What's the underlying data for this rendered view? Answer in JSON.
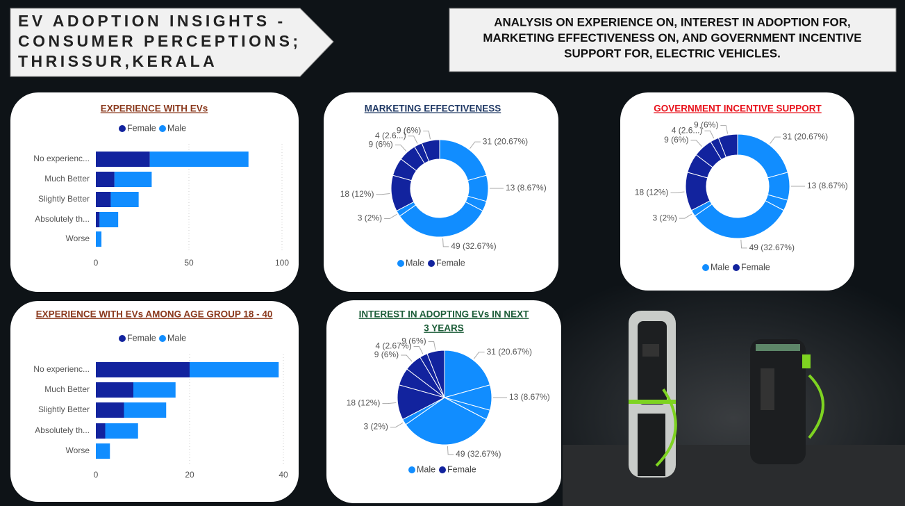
{
  "header": {
    "title_lines": [
      "EV ADOPTION INSIGHTS -",
      "CONSUMER PERCEPTIONS;",
      "THRISSUR,KERALA"
    ],
    "subtitle_lines": [
      "ANALYSIS ON EXPERIENCE ON, INTEREST IN ADOPTION FOR,",
      "MARKETING EFFECTIVENESS ON,  AND GOVERNMENT INCENTIVE",
      "SUPPORT FOR, ELECTRIC VEHICLES."
    ]
  },
  "chart_data": [
    {
      "type": "bar",
      "orientation": "horizontal",
      "stacked": true,
      "title": [
        "EXPERIENCE WITH EVs"
      ],
      "title_color": "#8b3a1e",
      "categories": [
        "No experienc...",
        "Much Better",
        "Slightly Better",
        "Absolutely th...",
        "Worse"
      ],
      "series": [
        {
          "name": "Female",
          "color": "#12239e",
          "values": [
            29,
            10,
            8,
            2,
            0
          ]
        },
        {
          "name": "Male",
          "color": "#118dff",
          "values": [
            53,
            20,
            15,
            10,
            3
          ]
        }
      ],
      "xlim": [
        0,
        100
      ],
      "xticks": [
        0,
        50,
        100
      ],
      "grid": true
    },
    {
      "type": "donut",
      "title": [
        "MARKETING EFFECTIVENESS"
      ],
      "title_color": "#1f3864",
      "series": [
        {
          "name": "Male",
          "color": "#118dff",
          "values": [
            31,
            13,
            5,
            49,
            3
          ],
          "value_labels": [
            "31 (20.67%)",
            "13 (8.67%)",
            null,
            "49 (32.67%)",
            "3 (2%)"
          ]
        },
        {
          "name": "Female",
          "color": "#12239e",
          "values": [
            18,
            9,
            9,
            4,
            9
          ],
          "value_labels": [
            "18 (12%)",
            null,
            "9 (6%)",
            "4 (2.6...)",
            "9 (6%)"
          ]
        }
      ]
    },
    {
      "type": "donut",
      "title": [
        "GOVERNMENT INCENTIVE SUPPORT"
      ],
      "title_color": "#e8101a",
      "series": [
        {
          "name": "Male",
          "color": "#118dff",
          "values": [
            31,
            13,
            5,
            49,
            3
          ],
          "value_labels": [
            "31 (20.67%)",
            "13 (8.67%)",
            null,
            "49 (32.67%)",
            "3 (2%)"
          ]
        },
        {
          "name": "Female",
          "color": "#12239e",
          "values": [
            18,
            9,
            9,
            4,
            9
          ],
          "value_labels": [
            "18 (12%)",
            null,
            "9 (6%)",
            "4 (2.6...)",
            "9 (6%)"
          ]
        }
      ]
    },
    {
      "type": "bar",
      "orientation": "horizontal",
      "stacked": true,
      "title": [
        "EXPERIENCE WITH EVs AMONG AGE GROUP 18 - 40"
      ],
      "title_color": "#8b3a1e",
      "categories": [
        "No experienc...",
        "Much Better",
        "Slightly Better",
        "Absolutely th...",
        "Worse"
      ],
      "series": [
        {
          "name": "Female",
          "color": "#12239e",
          "values": [
            20,
            8,
            6,
            2,
            0
          ]
        },
        {
          "name": "Male",
          "color": "#118dff",
          "values": [
            19,
            9,
            9,
            7,
            3
          ]
        }
      ],
      "xlim": [
        0,
        40
      ],
      "xticks": [
        0,
        20,
        40
      ],
      "grid": true
    },
    {
      "type": "pie",
      "title": [
        "INTEREST IN ADOPTING EVs IN NEXT",
        "3 YEARS"
      ],
      "title_color": "#1e5e3a",
      "series": [
        {
          "name": "Male",
          "color": "#118dff",
          "values": [
            31,
            13,
            5,
            49,
            3
          ],
          "value_labels": [
            "31 (20.67%)",
            "13 (8.67%)",
            null,
            "49 (32.67%)",
            "3 (2%)"
          ]
        },
        {
          "name": "Female",
          "color": "#12239e",
          "values": [
            18,
            9,
            9,
            4,
            9
          ],
          "value_labels": [
            "18 (12%)",
            null,
            "9 (6%)",
            "4 (2.67%)",
            "9 (6%)"
          ]
        }
      ]
    }
  ]
}
